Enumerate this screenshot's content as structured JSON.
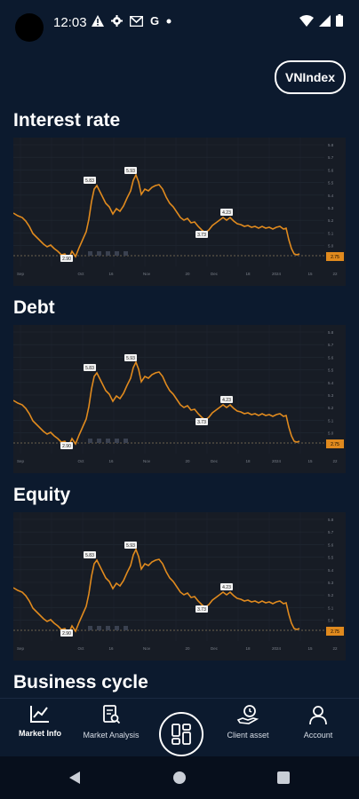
{
  "status_bar": {
    "time": "12:03",
    "icons": [
      "warning-icon",
      "gear-icon",
      "mail-icon",
      "google-icon",
      "dot-icon"
    ],
    "google_letter": "G"
  },
  "header": {
    "index_button": "VNIndex"
  },
  "sections": [
    {
      "title": "Interest rate"
    },
    {
      "title": "Debt"
    },
    {
      "title": "Equity"
    },
    {
      "title": "Business cycle"
    }
  ],
  "chart_data": [
    {
      "type": "line",
      "x_tick_labels": [
        "Sep",
        "Oct",
        "16",
        "Nov",
        "20",
        "Dec",
        "18",
        "2024",
        "15",
        "22"
      ],
      "y_tick_labels": [
        "5.8",
        "5.7",
        "5.6",
        "5.5",
        "5.4",
        "5.3",
        "5.2",
        "5.1",
        "5.0"
      ],
      "annotations": [
        "2.90",
        "5.83",
        "5.93",
        "3.73",
        "4.23"
      ],
      "last_value_tag": "2.75",
      "line_color": "#e08a1e"
    },
    {
      "type": "line",
      "x_tick_labels": [
        "Sep",
        "Oct",
        "16",
        "Nov",
        "20",
        "Dec",
        "18",
        "2024",
        "15",
        "22"
      ],
      "y_tick_labels": [
        "5.8",
        "5.7",
        "5.6",
        "5.5",
        "5.4",
        "5.3",
        "5.2",
        "5.1",
        "5.0"
      ],
      "annotations": [
        "2.90",
        "5.83",
        "5.93",
        "3.73",
        "4.23"
      ],
      "last_value_tag": "2.75",
      "line_color": "#e08a1e"
    },
    {
      "type": "line",
      "x_tick_labels": [
        "Sep",
        "Oct",
        "16",
        "Nov",
        "20",
        "Dec",
        "18",
        "2024",
        "15",
        "22"
      ],
      "y_tick_labels": [
        "5.8",
        "5.7",
        "5.6",
        "5.5",
        "5.4",
        "5.3",
        "5.2",
        "5.1",
        "5.0"
      ],
      "annotations": [
        "2.90",
        "5.83",
        "5.93",
        "3.73",
        "4.23"
      ],
      "last_value_tag": "2.75",
      "line_color": "#e08a1e"
    }
  ],
  "bottom_nav": {
    "items": [
      {
        "label": "Market Info",
        "icon": "chart-line-icon"
      },
      {
        "label": "Market Analysis",
        "icon": "report-search-icon"
      },
      {
        "label": "",
        "icon": "dashboard-icon"
      },
      {
        "label": "Client asset",
        "icon": "hand-clock-icon"
      },
      {
        "label": "Account",
        "icon": "user-icon"
      }
    ]
  },
  "colors": {
    "background": "#0c1a2e",
    "panel": "#171c25",
    "accent": "#e08a1e"
  }
}
